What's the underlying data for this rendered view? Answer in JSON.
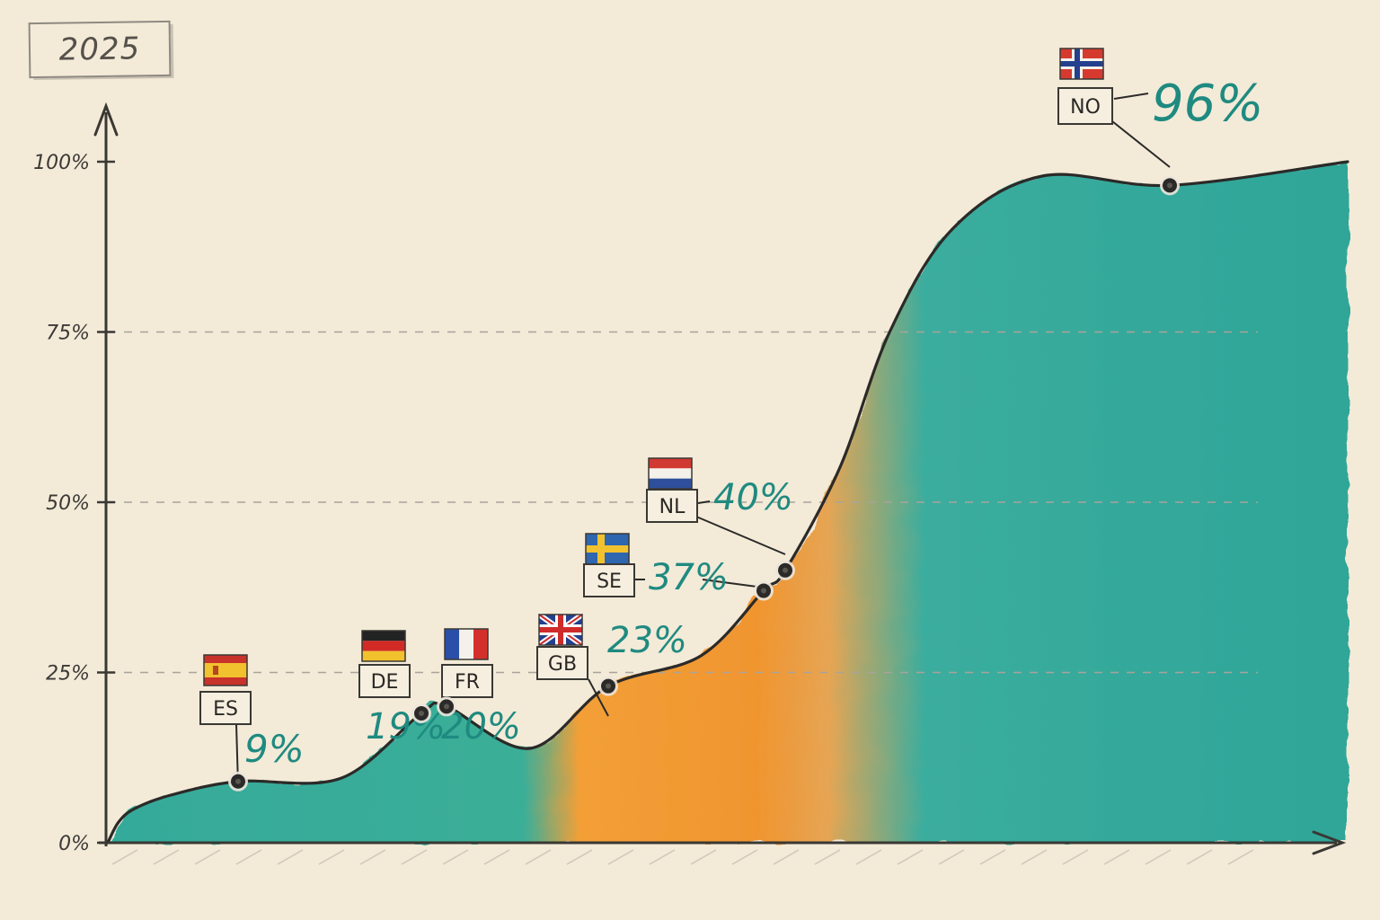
{
  "year_label": "2025",
  "colors": {
    "background": "#f3ead8",
    "teal": "#27a79a",
    "orange": "#f39a2c",
    "ink": "#2b2a28",
    "value_text": "#1f8a80"
  },
  "chart_data": {
    "type": "area",
    "title": "",
    "xlabel": "",
    "ylabel": "",
    "ylim": [
      0,
      100
    ],
    "grid": "dashed horizontal lines at 25%, 50%, 75%",
    "y_ticks": [
      "0%",
      "25%",
      "50%",
      "75%",
      "100%"
    ],
    "series": [
      {
        "points": [
          {
            "code": "ES",
            "flag": "spain-flag-icon",
            "value": 9,
            "label": "9%"
          },
          {
            "code": "DE",
            "flag": "germany-flag-icon",
            "value": 19,
            "label": "19%"
          },
          {
            "code": "FR",
            "flag": "france-flag-icon",
            "value": 20,
            "label": "20%"
          },
          {
            "code": "GB",
            "flag": "united-kingdom-flag-icon",
            "value": 23,
            "label": "23%"
          },
          {
            "code": "SE",
            "flag": "sweden-flag-icon",
            "value": 37,
            "label": "37%"
          },
          {
            "code": "NL",
            "flag": "netherlands-flag-icon",
            "value": 40,
            "label": "40%"
          },
          {
            "code": "NO",
            "flag": "norway-flag-icon",
            "value": 96,
            "label": "96%"
          }
        ]
      }
    ]
  }
}
